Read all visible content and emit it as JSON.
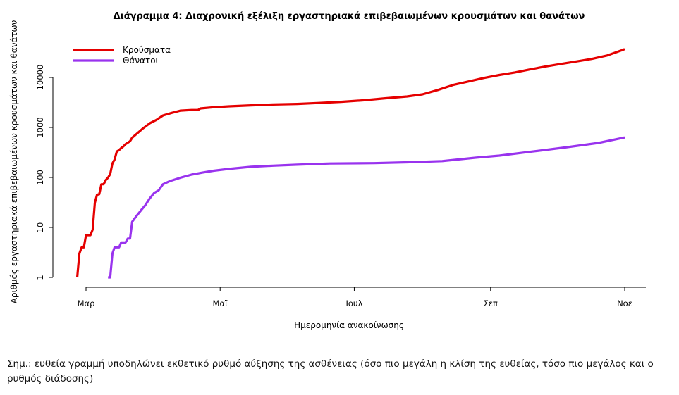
{
  "chart_data": {
    "type": "line",
    "title": "Διάγραμμα 4: Διαχρονική εξέλιξη εργαστηριακά επιβεβαιωμένων κρουσμάτων και θανάτων",
    "xlabel": "Ημερομηνία ανακοίνωσης",
    "ylabel": "Αριθμός εργαστηριακά επιβεβαιωμένων κρουσμάτων και θανάτων",
    "x_scale": "date",
    "y_scale": "log10",
    "xlim": [
      "2020-02-26",
      "2020-11-03"
    ],
    "ylim": [
      1,
      40000
    ],
    "x_ticks": [
      {
        "date": "2020-03-01",
        "label": "Μαρ"
      },
      {
        "date": "2020-05-01",
        "label": "Μαϊ"
      },
      {
        "date": "2020-07-01",
        "label": "Ιουλ"
      },
      {
        "date": "2020-09-01",
        "label": "Σεπ"
      },
      {
        "date": "2020-11-01",
        "label": "Νοε"
      }
    ],
    "y_ticks": [
      {
        "value": 1,
        "label": "1"
      },
      {
        "value": 10,
        "label": "10"
      },
      {
        "value": 100,
        "label": "100"
      },
      {
        "value": 1000,
        "label": "1000"
      },
      {
        "value": 10000,
        "label": "10000"
      }
    ],
    "legend_position": "top-left",
    "grid": false,
    "series": [
      {
        "name": "Κρούσματα",
        "color": "#e50000",
        "points": [
          [
            "2020-02-26",
            1
          ],
          [
            "2020-02-27",
            3
          ],
          [
            "2020-02-28",
            4
          ],
          [
            "2020-02-29",
            4
          ],
          [
            "2020-03-01",
            7
          ],
          [
            "2020-03-03",
            7
          ],
          [
            "2020-03-04",
            9
          ],
          [
            "2020-03-05",
            31
          ],
          [
            "2020-03-06",
            45
          ],
          [
            "2020-03-07",
            46
          ],
          [
            "2020-03-08",
            73
          ],
          [
            "2020-03-09",
            73
          ],
          [
            "2020-03-10",
            89
          ],
          [
            "2020-03-11",
            99
          ],
          [
            "2020-03-12",
            117
          ],
          [
            "2020-03-13",
            190
          ],
          [
            "2020-03-14",
            228
          ],
          [
            "2020-03-15",
            331
          ],
          [
            "2020-03-16",
            352
          ],
          [
            "2020-03-17",
            387
          ],
          [
            "2020-03-18",
            418
          ],
          [
            "2020-03-19",
            464
          ],
          [
            "2020-03-20",
            495
          ],
          [
            "2020-03-21",
            530
          ],
          [
            "2020-03-22",
            624
          ],
          [
            "2020-03-24",
            743
          ],
          [
            "2020-03-27",
            966
          ],
          [
            "2020-03-30",
            1212
          ],
          [
            "2020-04-02",
            1415
          ],
          [
            "2020-04-05",
            1735
          ],
          [
            "2020-04-09",
            1955
          ],
          [
            "2020-04-13",
            2170
          ],
          [
            "2020-04-18",
            2235
          ],
          [
            "2020-04-21",
            2245
          ],
          [
            "2020-04-22",
            2401
          ],
          [
            "2020-04-28",
            2534
          ],
          [
            "2020-05-05",
            2642
          ],
          [
            "2020-05-15",
            2770
          ],
          [
            "2020-05-25",
            2882
          ],
          [
            "2020-06-05",
            2952
          ],
          [
            "2020-06-15",
            3088
          ],
          [
            "2020-06-25",
            3256
          ],
          [
            "2020-07-05",
            3486
          ],
          [
            "2020-07-15",
            3826
          ],
          [
            "2020-07-25",
            4166
          ],
          [
            "2020-08-01",
            4587
          ],
          [
            "2020-08-08",
            5623
          ],
          [
            "2020-08-15",
            7080
          ],
          [
            "2020-08-22",
            8318
          ],
          [
            "2020-08-29",
            9772
          ],
          [
            "2020-09-05",
            11220
          ],
          [
            "2020-09-12",
            12590
          ],
          [
            "2020-09-19",
            14450
          ],
          [
            "2020-09-26",
            16600
          ],
          [
            "2020-10-03",
            18620
          ],
          [
            "2020-10-10",
            20890
          ],
          [
            "2020-10-17",
            23440
          ],
          [
            "2020-10-24",
            27540
          ],
          [
            "2020-10-31",
            35480
          ],
          [
            "2020-11-01",
            37000
          ]
        ]
      },
      {
        "name": "Θάνατοι",
        "color": "#9933ee",
        "points": [
          [
            "2020-03-11",
            1
          ],
          [
            "2020-03-12",
            1
          ],
          [
            "2020-03-13",
            3
          ],
          [
            "2020-03-14",
            4
          ],
          [
            "2020-03-16",
            4
          ],
          [
            "2020-03-17",
            5
          ],
          [
            "2020-03-19",
            5
          ],
          [
            "2020-03-20",
            6
          ],
          [
            "2020-03-21",
            6
          ],
          [
            "2020-03-22",
            13
          ],
          [
            "2020-03-24",
            17
          ],
          [
            "2020-03-26",
            22
          ],
          [
            "2020-03-28",
            28
          ],
          [
            "2020-03-30",
            38
          ],
          [
            "2020-04-01",
            49
          ],
          [
            "2020-04-03",
            55
          ],
          [
            "2020-04-05",
            73
          ],
          [
            "2020-04-08",
            84
          ],
          [
            "2020-04-13",
            99
          ],
          [
            "2020-04-18",
            114
          ],
          [
            "2020-04-23",
            125
          ],
          [
            "2020-04-28",
            136
          ],
          [
            "2020-05-05",
            148
          ],
          [
            "2020-05-15",
            163
          ],
          [
            "2020-05-25",
            172
          ],
          [
            "2020-06-05",
            180
          ],
          [
            "2020-06-20",
            190
          ],
          [
            "2020-07-10",
            193
          ],
          [
            "2020-07-25",
            201
          ],
          [
            "2020-08-10",
            212
          ],
          [
            "2020-08-25",
            248
          ],
          [
            "2020-09-05",
            273
          ],
          [
            "2020-09-20",
            330
          ],
          [
            "2020-10-05",
            398
          ],
          [
            "2020-10-20",
            490
          ],
          [
            "2020-11-01",
            631
          ]
        ]
      }
    ]
  },
  "note": "Σημ.: ευθεία γραμμή υποδηλώνει εκθετικό ρυθμό αύξησης της ασθένειας (όσο πιο μεγάλη η κλίση της ευθείας, τόσο πιο μεγάλος και ο ρυθμός διάδοσης)"
}
